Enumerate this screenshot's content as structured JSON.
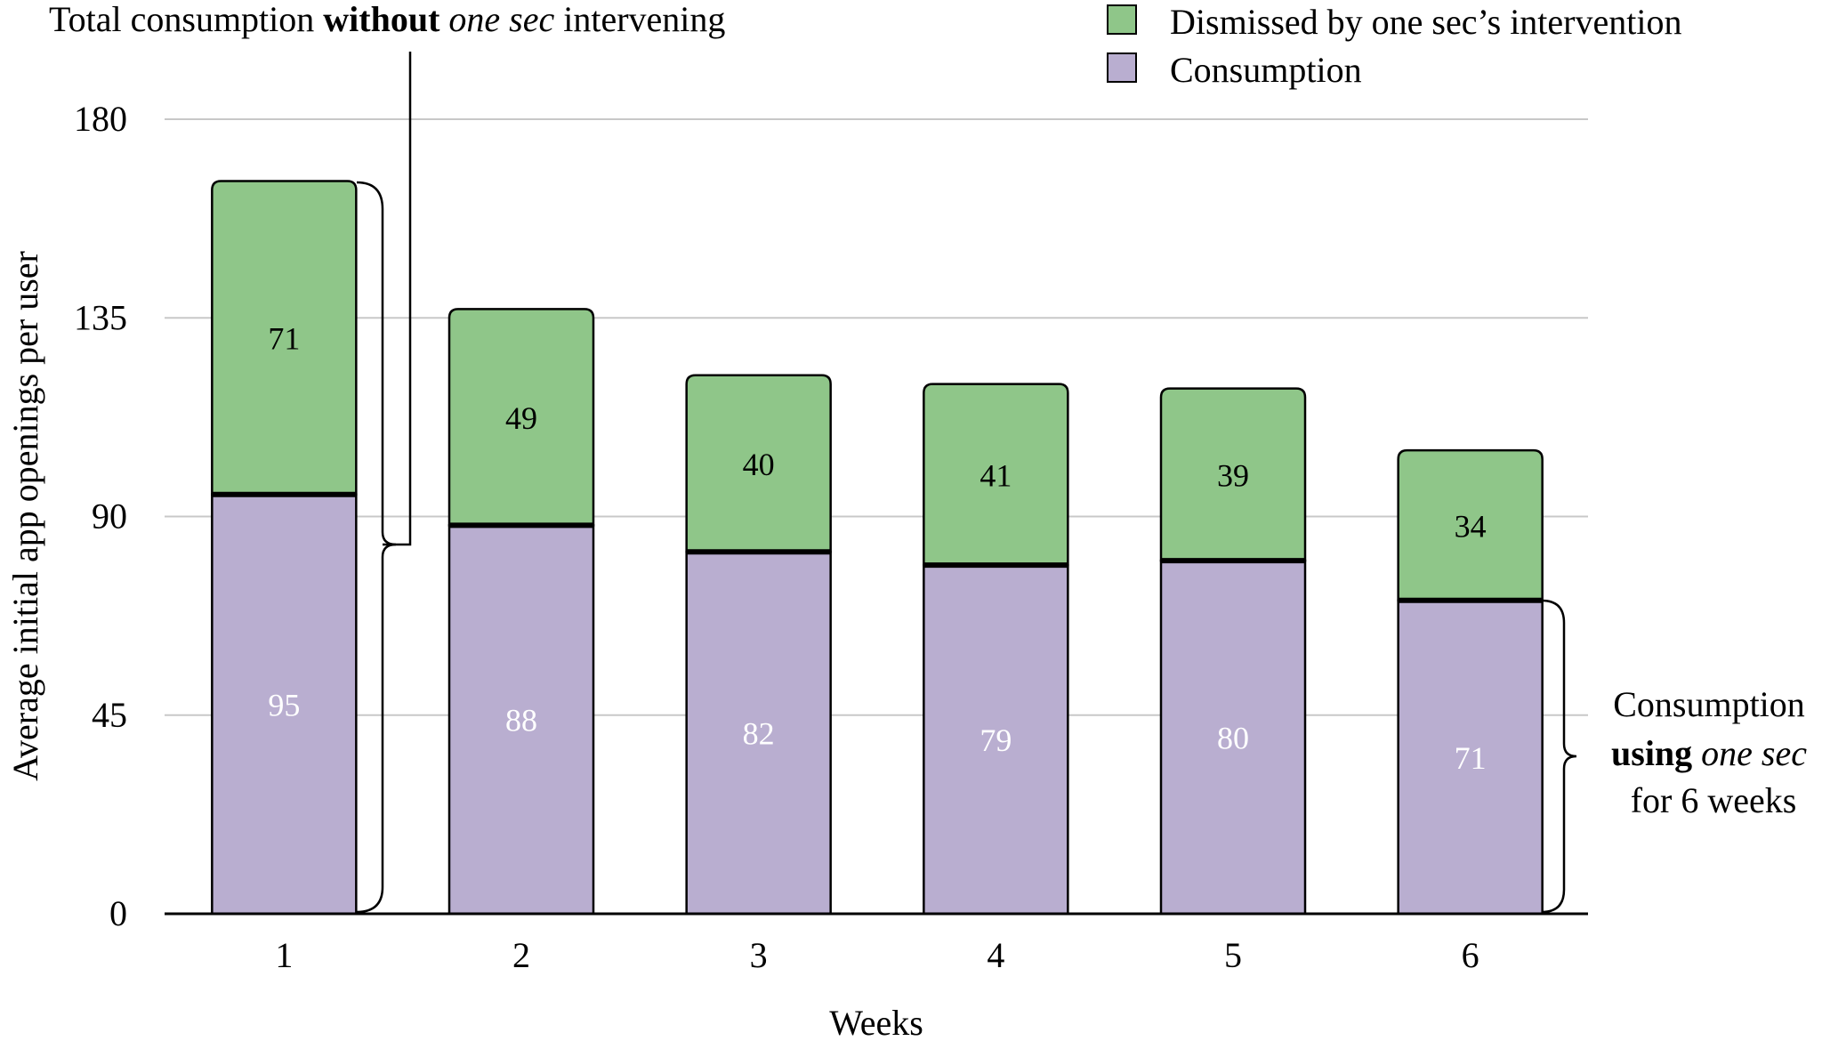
{
  "chart_data": {
    "type": "bar",
    "stacked": true,
    "categories": [
      "1",
      "2",
      "3",
      "4",
      "5",
      "6"
    ],
    "series": [
      {
        "name": "Consumption",
        "values": [
          95,
          88,
          82,
          79,
          80,
          71
        ],
        "color": "#b9aed0"
      },
      {
        "name": "Dismissed by one sec’s intervention",
        "values": [
          71,
          49,
          40,
          41,
          39,
          34
        ],
        "color": "#8fc689"
      }
    ],
    "xlabel": "Weeks",
    "ylabel": "Average initial app openings per user",
    "ylim": [
      0,
      180
    ],
    "yticks": [
      "0",
      "45",
      "90",
      "135",
      "180"
    ],
    "grid": true,
    "legend_position": "top-right",
    "legend": [
      {
        "label": "Dismissed by one sec’s intervention",
        "color": "#8fc689"
      },
      {
        "label": "Consumption",
        "color": "#b9aed0"
      }
    ],
    "annotations": {
      "top": {
        "part1": "Total consumption ",
        "bold": "without",
        "part2": " ",
        "italic": "one sec",
        "part3": " intervening"
      },
      "right": {
        "line1": "Consumption",
        "line2_bold": "using",
        "line2_rest": " ",
        "line2_italic": "one sec",
        "line3": "for 6 weeks"
      }
    }
  }
}
